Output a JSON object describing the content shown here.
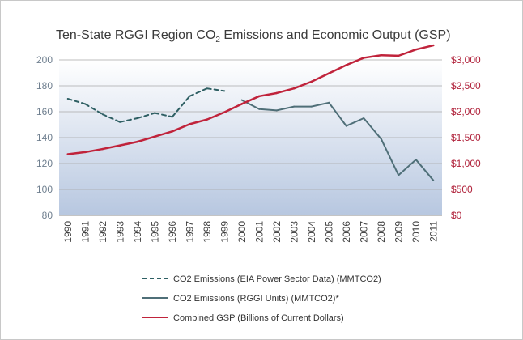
{
  "chart_data": {
    "type": "line",
    "title": {
      "prefix": "Ten-State RGGI Region CO",
      "subscript": "2",
      "suffix": " Emissions and Economic  Output (GSP)"
    },
    "x": [
      "1990",
      "1991",
      "1992",
      "1993",
      "1994",
      "1995",
      "1996",
      "1997",
      "1998",
      "1999",
      "2000",
      "2001",
      "2002",
      "2003",
      "2004",
      "2005",
      "2006",
      "2007",
      "2008",
      "2009",
      "2010",
      "2011"
    ],
    "left_axis": {
      "range": [
        80,
        200
      ],
      "ticks": [
        200,
        180,
        160,
        140,
        120,
        100,
        80
      ],
      "tick_labels": [
        "200",
        "180",
        "160",
        "140",
        "120",
        "100",
        "80"
      ]
    },
    "right_axis": {
      "range": [
        0,
        3000
      ],
      "ticks": [
        3000,
        2500,
        2000,
        1500,
        1000,
        500,
        0
      ],
      "tick_labels": [
        "$3,000",
        "$2,500",
        "$2,000",
        "$1,500",
        "$1,000",
        "$500",
        "$0"
      ]
    },
    "grid": true,
    "series": [
      {
        "name": "CO2 Emissions (EIA Power Sector Data) (MMTCO2)",
        "axis": "left",
        "style": "dashed",
        "color": "#2e5f63",
        "values": [
          170,
          166,
          158,
          152,
          155,
          159,
          156,
          172,
          178,
          176,
          null,
          null,
          null,
          null,
          null,
          null,
          null,
          null,
          null,
          null,
          null,
          null
        ]
      },
      {
        "name": "CO2 Emissions (RGGI Units) (MMTCO2)*",
        "axis": "left",
        "style": "solid",
        "color": "#4f6f78",
        "values": [
          null,
          null,
          null,
          null,
          null,
          null,
          null,
          null,
          null,
          null,
          169,
          162,
          161,
          164,
          164,
          167,
          149,
          155,
          139,
          111,
          123,
          107
        ]
      },
      {
        "name": "Combined GSP (Billions of Current Dollars)",
        "axis": "right",
        "style": "solid",
        "color": "#c0233b",
        "values": [
          1180,
          1220,
          1280,
          1350,
          1420,
          1520,
          1620,
          1760,
          1850,
          1990,
          2150,
          2300,
          2360,
          2450,
          2580,
          2740,
          2900,
          3040,
          3090,
          3080,
          3200,
          3280
        ]
      }
    ],
    "legend_position": "bottom"
  }
}
